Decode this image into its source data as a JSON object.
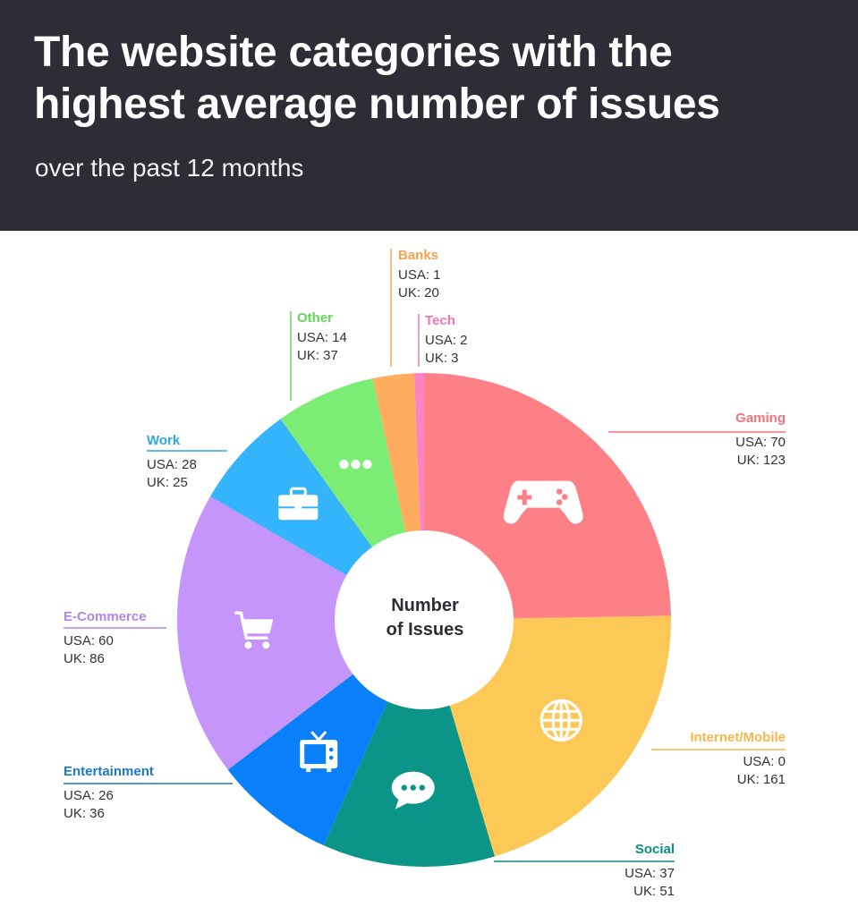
{
  "header": {
    "title": "The website categories with the highest average number of issues",
    "subtitle": "over the past 12 months"
  },
  "center": {
    "line1": "Number",
    "line2": "of Issues"
  },
  "chart_data": {
    "type": "pie",
    "title": "The website categories with the highest average number of issues",
    "subtitle": "over the past 12 months",
    "center_label": "Number of Issues",
    "slices": [
      {
        "name": "Gaming",
        "usa": 70,
        "uk": 123,
        "total": 193,
        "color": "#fd8087",
        "icon": "gamepad-icon",
        "usa_text": "USA: 70",
        "uk_text": "UK: 123"
      },
      {
        "name": "Internet/Mobile",
        "usa": 0,
        "uk": 161,
        "total": 161,
        "color": "#fdc956",
        "icon": "globe-icon",
        "usa_text": "USA: 0",
        "uk_text": "UK: 161"
      },
      {
        "name": "Social",
        "usa": 37,
        "uk": 51,
        "total": 88,
        "color": "#0b9488",
        "icon": "chat-bubble-icon",
        "usa_text": "USA: 37",
        "uk_text": "UK: 51"
      },
      {
        "name": "Entertainment",
        "usa": 26,
        "uk": 36,
        "total": 62,
        "color": "#0980f9",
        "icon": "tv-icon",
        "usa_text": "USA: 26",
        "uk_text": "UK: 36"
      },
      {
        "name": "E-Commerce",
        "usa": 60,
        "uk": 86,
        "total": 146,
        "color": "#c695fc",
        "icon": "shopping-cart-icon",
        "usa_text": "USA: 60",
        "uk_text": "UK: 86"
      },
      {
        "name": "Work",
        "usa": 28,
        "uk": 25,
        "total": 53,
        "color": "#34b4fb",
        "icon": "briefcase-icon",
        "usa_text": "USA: 28",
        "uk_text": "UK: 25"
      },
      {
        "name": "Other",
        "usa": 14,
        "uk": 37,
        "total": 51,
        "color": "#7bed74",
        "icon": "more-dots-icon",
        "usa_text": "USA: 14",
        "uk_text": "UK: 37"
      },
      {
        "name": "Banks",
        "usa": 1,
        "uk": 20,
        "total": 21,
        "color": "#fdad5d",
        "icon": "",
        "usa_text": "USA: 1",
        "uk_text": "UK: 20"
      },
      {
        "name": "Tech",
        "usa": 2,
        "uk": 3,
        "total": 5,
        "color": "#f983c5",
        "icon": "",
        "usa_text": "USA: 2",
        "uk_text": "UK: 3"
      }
    ],
    "label_colors": {
      "Gaming": "#f47379",
      "Internet/Mobile": "#f7b64a",
      "Social": "#0b8c80",
      "Entertainment": "#1b77c9",
      "E-Commerce": "#b086e6",
      "Work": "#2fa6e6",
      "Other": "#5fd757",
      "Banks": "#f3a24f",
      "Tech": "#f373b8"
    }
  }
}
